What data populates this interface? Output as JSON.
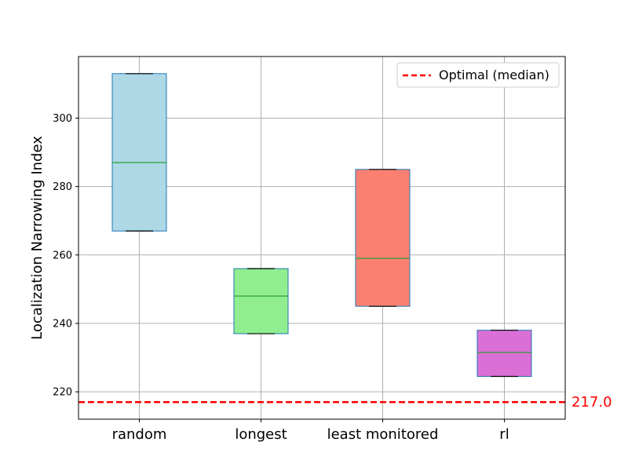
{
  "chart_data": {
    "type": "box",
    "categories": [
      "random",
      "longest",
      "least monitored",
      "rl"
    ],
    "boxes": [
      {
        "category": "random",
        "min": 267,
        "q1": 267,
        "median": 287,
        "q3": 313,
        "max": 313,
        "color": "#add8e6"
      },
      {
        "category": "longest",
        "min": 237,
        "q1": 237,
        "median": 248,
        "q3": 256,
        "max": 256,
        "color": "#90ee90"
      },
      {
        "category": "least monitored",
        "min": 245,
        "q1": 245,
        "median": 259,
        "q3": 285,
        "max": 285,
        "color": "#fa8072"
      },
      {
        "category": "rl",
        "min": 224.5,
        "q1": 224.5,
        "median": 231.5,
        "q3": 238,
        "max": 238,
        "color": "#da70d6"
      }
    ],
    "reference_line": {
      "value": 217.0,
      "label": "217.0",
      "legend": "Optimal (median)",
      "color": "#ff0000",
      "style": "dashed"
    },
    "ylabel": "Localization Narrowing Index",
    "xlabel": "",
    "title": "",
    "ylim": [
      212,
      318
    ],
    "yticks": [
      220,
      240,
      260,
      280,
      300
    ],
    "grid": true,
    "legend_position": "top-right",
    "box_edge_color": "#1f77b4",
    "median_color": "#2ca02c",
    "whisker_cap_color": "#000000"
  }
}
